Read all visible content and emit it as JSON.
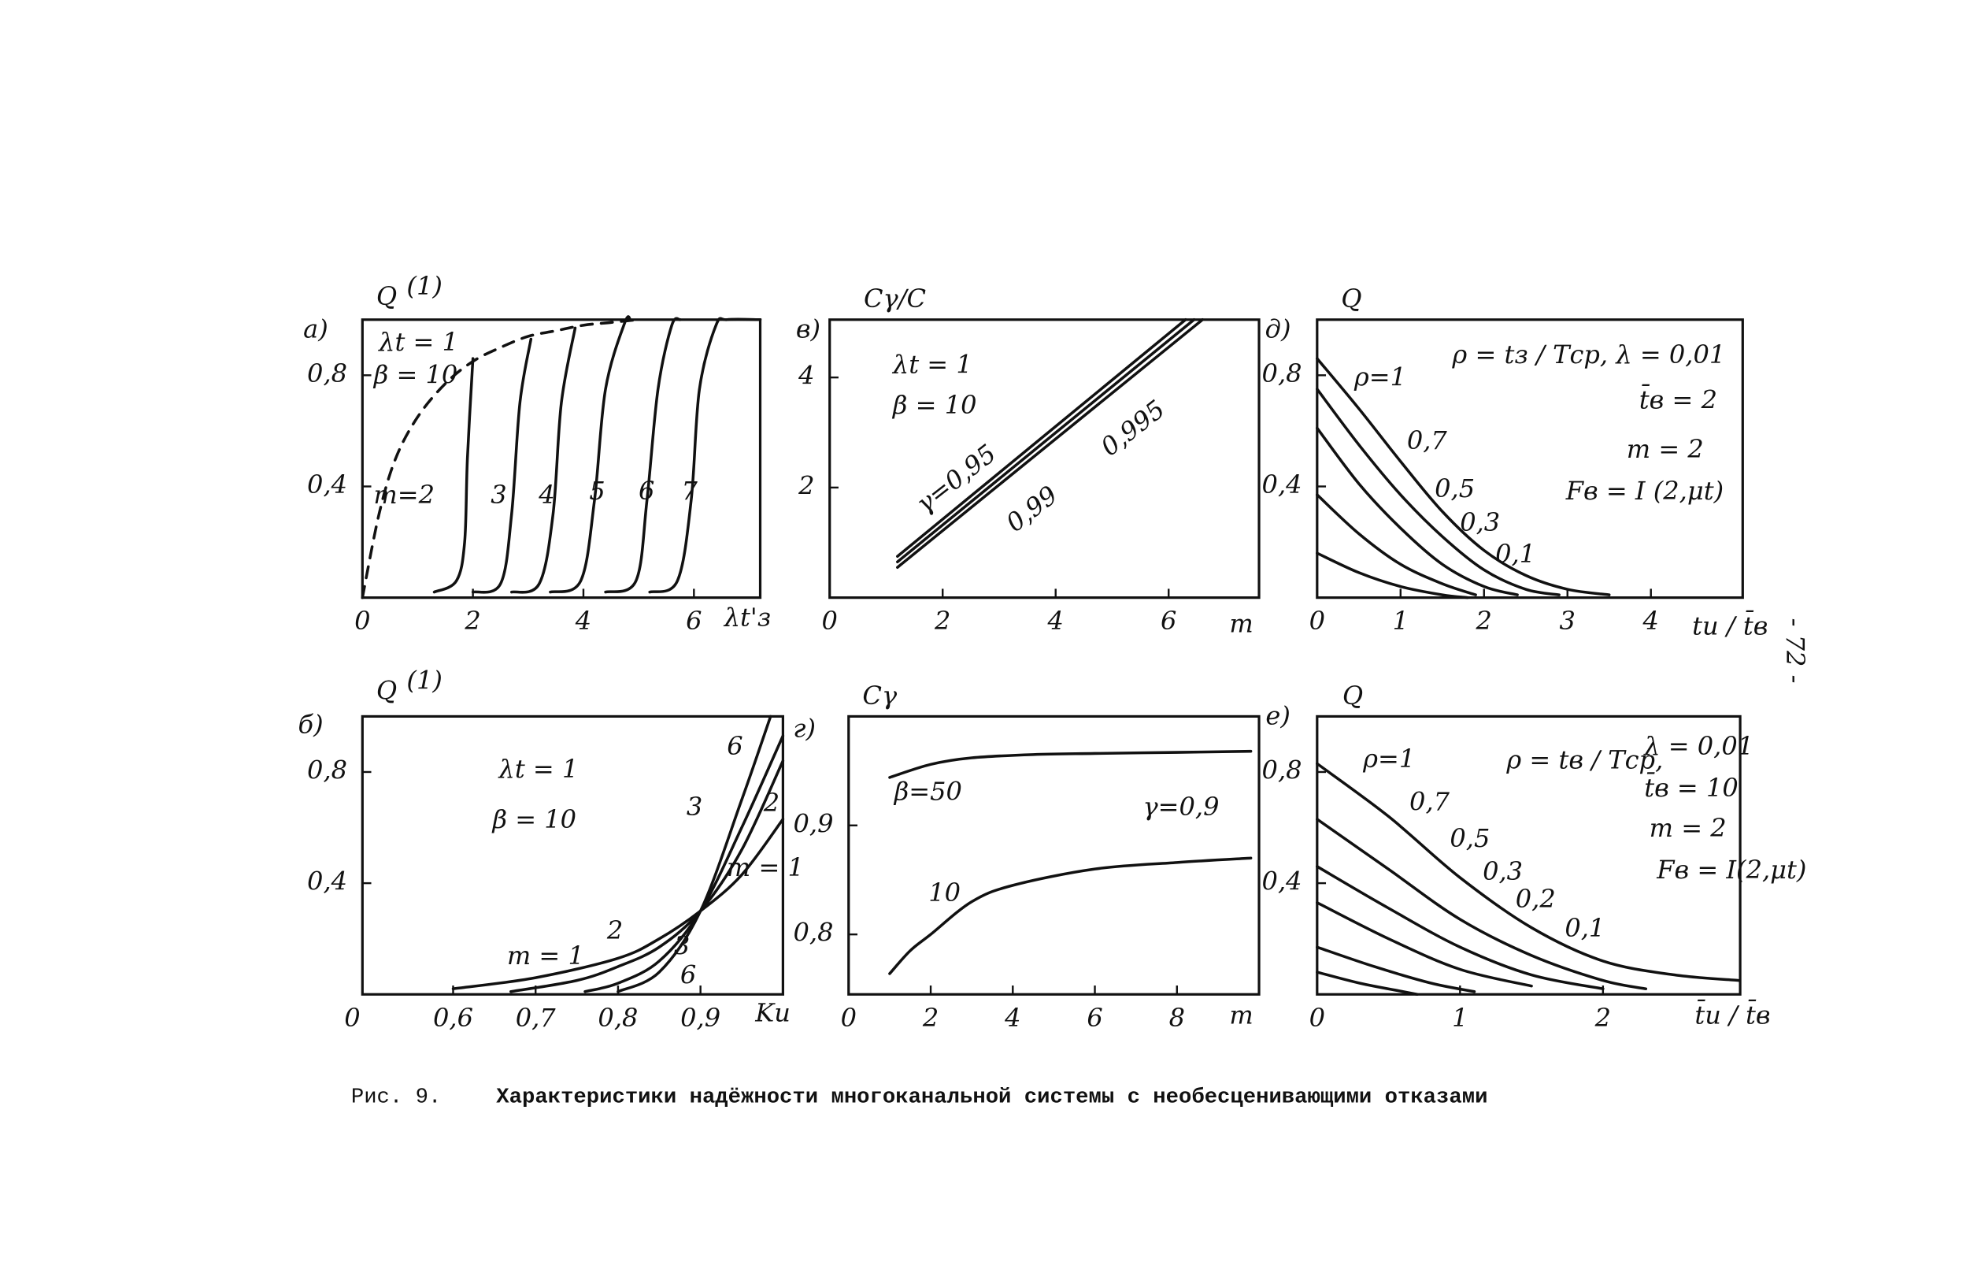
{
  "chart_data": [
    {
      "type": "line",
      "panel": "а)",
      "y_label": "Q",
      "y_label_note": "(1)",
      "x_label": "λt'з",
      "xlim": [
        0,
        7.2
      ],
      "ylim": [
        0,
        1
      ],
      "xticks": [
        0,
        2,
        4,
        6
      ],
      "yticks": [
        {
          "value": 0.4,
          "label": "0,4"
        },
        {
          "value": 0.8,
          "label": "0,8"
        }
      ],
      "annotations": [
        "λt = 1",
        "β = 10"
      ],
      "series": [
        {
          "color": "#111",
          "dash": true,
          "x": [
            0,
            0.3,
            0.6,
            1,
            1.5,
            2,
            2.5,
            3,
            3.5,
            4,
            4.5,
            5
          ],
          "values": [
            0,
            0.3,
            0.5,
            0.65,
            0.77,
            0.85,
            0.9,
            0.94,
            0.96,
            0.98,
            0.99,
            1.0
          ]
        },
        {
          "name": "m=2",
          "color": "#111",
          "x": [
            1.3,
            1.7,
            1.85,
            1.9,
            2.0
          ],
          "values": [
            0.02,
            0.06,
            0.2,
            0.5,
            0.86
          ]
        },
        {
          "name": "3",
          "color": "#111",
          "x": [
            2.0,
            2.5,
            2.7,
            2.85,
            3.05
          ],
          "values": [
            0.02,
            0.05,
            0.3,
            0.7,
            0.93
          ]
        },
        {
          "name": "4",
          "color": "#111",
          "x": [
            2.7,
            3.2,
            3.45,
            3.6,
            3.85
          ],
          "values": [
            0.02,
            0.05,
            0.3,
            0.7,
            0.97
          ]
        },
        {
          "name": "5",
          "color": "#111",
          "x": [
            3.4,
            3.95,
            4.2,
            4.4,
            4.75,
            4.85
          ],
          "values": [
            0.02,
            0.06,
            0.35,
            0.75,
            0.99,
            1.0
          ]
        },
        {
          "name": "6",
          "color": "#111",
          "x": [
            4.4,
            4.95,
            5.15,
            5.35,
            5.6,
            5.75
          ],
          "values": [
            0.02,
            0.06,
            0.35,
            0.75,
            0.98,
            1.0
          ]
        },
        {
          "name": "7",
          "color": "#111",
          "x": [
            5.2,
            5.7,
            5.95,
            6.1,
            6.4,
            6.6,
            7.2
          ],
          "values": [
            0.02,
            0.06,
            0.35,
            0.75,
            0.98,
            1.0,
            1.0
          ]
        }
      ]
    },
    {
      "type": "line",
      "panel": "в)",
      "y_label": "Cγ/C",
      "x_label": "m",
      "xlim": [
        0,
        7.6
      ],
      "ylim": [
        0,
        5.05
      ],
      "xticks": [
        0,
        2,
        4,
        6
      ],
      "yticks": [
        2,
        4
      ],
      "annotations": [
        "λt = 1",
        "β = 10"
      ],
      "series": [
        {
          "name": "γ=0,95",
          "color": "#111",
          "x": [
            1.2,
            6.3
          ],
          "values": [
            0.75,
            5.05
          ]
        },
        {
          "name": "0,99",
          "color": "#111",
          "x": [
            1.2,
            6.45
          ],
          "values": [
            0.65,
            5.05
          ]
        },
        {
          "name": "0,995",
          "color": "#111",
          "x": [
            1.2,
            6.6
          ],
          "values": [
            0.55,
            5.05
          ]
        }
      ]
    },
    {
      "type": "line",
      "panel": "д)",
      "y_label": "Q",
      "x_label": "tи / t̄в",
      "xlim": [
        0,
        5.1
      ],
      "ylim": [
        0,
        1
      ],
      "xticks": [
        0,
        1,
        2,
        3,
        4
      ],
      "yticks": [
        {
          "value": 0.4,
          "label": "0,4"
        },
        {
          "value": 0.8,
          "label": "0,8"
        }
      ],
      "annotations": [
        "ρ = tз / Tср,  λ = 0,01",
        "t̄в = 2",
        "m = 2",
        "Fв = I (2,μt)"
      ],
      "series": [
        {
          "name": "ρ=1",
          "color": "#111",
          "x": [
            0,
            0.5,
            1,
            1.5,
            2,
            2.5,
            3,
            3.5
          ],
          "values": [
            0.86,
            0.68,
            0.49,
            0.31,
            0.17,
            0.08,
            0.03,
            0.01
          ]
        },
        {
          "name": "0,7",
          "color": "#111",
          "x": [
            0,
            0.5,
            1,
            1.5,
            2,
            2.5,
            2.9
          ],
          "values": [
            0.75,
            0.55,
            0.37,
            0.22,
            0.1,
            0.03,
            0.01
          ]
        },
        {
          "name": "0,5",
          "color": "#111",
          "x": [
            0,
            0.5,
            1,
            1.5,
            2,
            2.4
          ],
          "values": [
            0.61,
            0.41,
            0.25,
            0.12,
            0.04,
            0.01
          ]
        },
        {
          "name": "0,3",
          "color": "#111",
          "x": [
            0,
            0.5,
            1,
            1.5,
            1.9
          ],
          "values": [
            0.37,
            0.23,
            0.12,
            0.05,
            0.01
          ]
        },
        {
          "name": "0,1",
          "color": "#111",
          "x": [
            0,
            0.5,
            1,
            1.5,
            1.8
          ],
          "values": [
            0.16,
            0.09,
            0.04,
            0.01,
            0.0
          ]
        }
      ]
    },
    {
      "type": "line",
      "panel": "б)",
      "y_label": "Q",
      "y_label_note": "(1)",
      "x_label": "Kи",
      "origin_label": "0",
      "xlim": [
        0.49,
        1.0
      ],
      "ylim": [
        0,
        1
      ],
      "xticks": [
        {
          "value": 0.6,
          "label": "0,6"
        },
        {
          "value": 0.7,
          "label": "0,7"
        },
        {
          "value": 0.8,
          "label": "0,8"
        },
        {
          "value": 0.9,
          "label": "0,9"
        }
      ],
      "yticks": [
        {
          "value": 0.4,
          "label": "0,4"
        },
        {
          "value": 0.8,
          "label": "0,8"
        }
      ],
      "annotations": [
        "λt = 1",
        "β = 10"
      ],
      "series": [
        {
          "name": "m = 1",
          "color": "#111",
          "x": [
            0.6,
            0.7,
            0.8,
            0.85,
            0.9,
            0.95,
            1.0
          ],
          "values": [
            0.02,
            0.06,
            0.13,
            0.2,
            0.3,
            0.43,
            0.63
          ]
        },
        {
          "name": "2",
          "color": "#111",
          "x": [
            0.67,
            0.75,
            0.8,
            0.85,
            0.9,
            0.95,
            1.0
          ],
          "values": [
            0.01,
            0.05,
            0.1,
            0.17,
            0.3,
            0.52,
            0.84
          ]
        },
        {
          "name": "3",
          "color": "#111",
          "x": [
            0.76,
            0.8,
            0.85,
            0.9,
            0.95,
            1.0
          ],
          "values": [
            0.01,
            0.04,
            0.12,
            0.3,
            0.6,
            0.93
          ]
        },
        {
          "name": "6",
          "color": "#111",
          "x": [
            0.8,
            0.85,
            0.9,
            0.95,
            0.985
          ],
          "values": [
            0.01,
            0.08,
            0.3,
            0.7,
            1.0
          ]
        }
      ]
    },
    {
      "type": "line",
      "panel": "г)",
      "y_label": "Cγ",
      "x_label": "m",
      "xlim": [
        0,
        10
      ],
      "ylim": [
        0.745,
        1.0
      ],
      "xticks": [
        0,
        2,
        4,
        6,
        8
      ],
      "yticks": [
        {
          "value": 0.8,
          "label": "0,8"
        },
        {
          "value": 0.9,
          "label": "0,9"
        }
      ],
      "annotations": [
        "γ=0,9"
      ],
      "series": [
        {
          "name": "β=50",
          "color": "#111",
          "x": [
            1,
            2,
            3,
            4.5,
            6,
            8,
            9.8
          ],
          "values": [
            0.944,
            0.956,
            0.962,
            0.965,
            0.966,
            0.967,
            0.968
          ]
        },
        {
          "name": "10",
          "color": "#111",
          "x": [
            1,
            1.5,
            2,
            3,
            4,
            6,
            8,
            9.8
          ],
          "values": [
            0.764,
            0.785,
            0.8,
            0.83,
            0.845,
            0.86,
            0.866,
            0.87
          ]
        }
      ]
    },
    {
      "type": "line",
      "panel": "е)",
      "y_label": "Q",
      "x_label": "t̄и / t̄в",
      "xlim": [
        0,
        2.96
      ],
      "ylim": [
        0,
        1
      ],
      "xticks": [
        0,
        1,
        2
      ],
      "yticks": [
        {
          "value": 0.4,
          "label": "0,4"
        },
        {
          "value": 0.8,
          "label": "0,8"
        }
      ],
      "annotations": [
        "ρ = tв / Tср,",
        "λ = 0,01",
        "t̄в = 10",
        "m = 2",
        "Fв = I(2,μt)"
      ],
      "series": [
        {
          "name": "ρ=1",
          "color": "#111",
          "x": [
            0,
            0.5,
            1,
            1.5,
            2,
            2.5,
            2.95
          ],
          "values": [
            0.83,
            0.64,
            0.42,
            0.24,
            0.12,
            0.07,
            0.05
          ]
        },
        {
          "name": "0,7",
          "color": "#111",
          "x": [
            0,
            0.5,
            1,
            1.5,
            2,
            2.3
          ],
          "values": [
            0.63,
            0.45,
            0.27,
            0.14,
            0.05,
            0.02
          ]
        },
        {
          "name": "0,5",
          "color": "#111",
          "x": [
            0,
            0.5,
            1,
            1.5,
            2
          ],
          "values": [
            0.46,
            0.31,
            0.17,
            0.07,
            0.02
          ]
        },
        {
          "name": "0,3",
          "color": "#111",
          "x": [
            0,
            0.5,
            1,
            1.5
          ],
          "values": [
            0.33,
            0.2,
            0.09,
            0.03
          ]
        },
        {
          "name": "0,2",
          "color": "#111",
          "x": [
            0,
            0.4,
            0.8,
            1.1
          ],
          "values": [
            0.17,
            0.1,
            0.04,
            0.01
          ]
        },
        {
          "name": "0,1",
          "color": "#111",
          "x": [
            0,
            0.3,
            0.6,
            0.7
          ],
          "values": [
            0.08,
            0.04,
            0.01,
            0.0
          ]
        }
      ]
    }
  ],
  "caption_label": "Рис. 9.",
  "caption": "Характеристики надёжности многоканальной системы с необесценивающими отказами",
  "page_number": "- 72 -"
}
